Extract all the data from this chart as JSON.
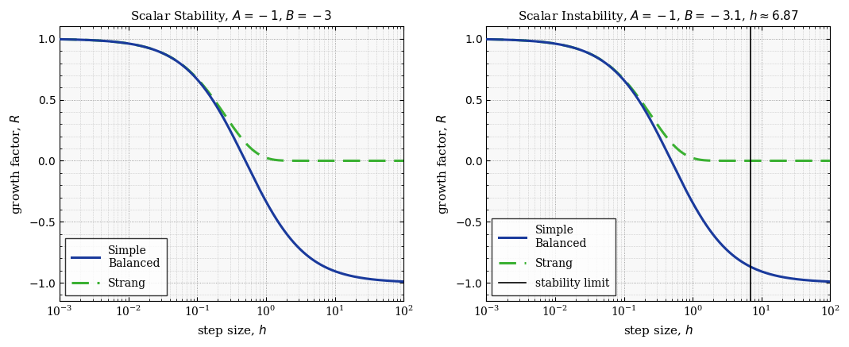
{
  "A1": -1,
  "B1": -3,
  "A2": -1,
  "B2": -3.1,
  "stability_limit2": 6.87,
  "title1": "Scalar Stability, $A = -1$, $B = -3$",
  "title2": "Scalar Instability, $A = -1$, $B = -3.1$, $h \\approx 6.87$",
  "xlabel": "step size, $h$",
  "ylabel": "growth factor, $R$",
  "color_simple": "#1a3a9c",
  "color_strang": "#3ab032",
  "lw_simple": 2.2,
  "lw_strang": 2.2,
  "ylim": [
    -1.15,
    1.1
  ],
  "xlim_lo": 0.001,
  "xlim_hi": 100.0,
  "legend_label3": "stability limit",
  "figsize": [
    10.69,
    4.37
  ],
  "dpi": 100
}
